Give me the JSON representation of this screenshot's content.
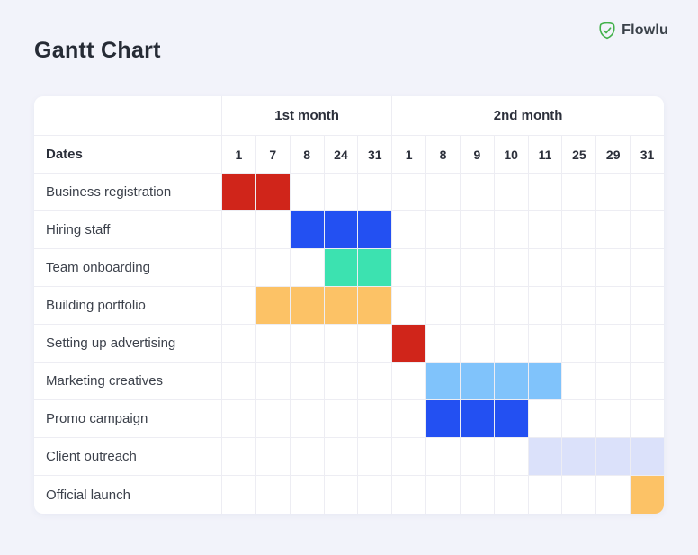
{
  "header": {
    "title": "Gantt Chart",
    "logo": {
      "icon": "flowlu-check-badge-icon",
      "text": "Flowlu",
      "green": "#43b14b"
    }
  },
  "table": {
    "months": [
      {
        "label": "1st month",
        "span": 5
      },
      {
        "label": "2nd month",
        "span": 8
      }
    ],
    "dates_label": "Dates",
    "dates": [
      "1",
      "7",
      "8",
      "24",
      "31",
      "1",
      "8",
      "9",
      "10",
      "11",
      "25",
      "29",
      "31"
    ],
    "rows": [
      {
        "label": "Business registration",
        "bars": [
          {
            "from": 1,
            "to": 2,
            "color": "red"
          }
        ]
      },
      {
        "label": "Hiring staff",
        "bars": [
          {
            "from": 3,
            "to": 5,
            "color": "blue"
          }
        ]
      },
      {
        "label": "Team onboarding",
        "bars": [
          {
            "from": 4,
            "to": 5,
            "color": "teal"
          }
        ]
      },
      {
        "label": "Building portfolio",
        "bars": [
          {
            "from": 2,
            "to": 5,
            "color": "orange"
          }
        ]
      },
      {
        "label": "Setting up advertising",
        "bars": [
          {
            "from": 6,
            "to": 6,
            "color": "red"
          }
        ]
      },
      {
        "label": "Marketing creatives",
        "bars": [
          {
            "from": 7,
            "to": 10,
            "color": "sky"
          }
        ]
      },
      {
        "label": "Promo campaign",
        "bars": [
          {
            "from": 7,
            "to": 9,
            "color": "blue"
          }
        ]
      },
      {
        "label": "Client outreach",
        "bars": [
          {
            "from": 10,
            "to": 13,
            "color": "lavender"
          }
        ]
      },
      {
        "label": "Official launch",
        "bars": [
          {
            "from": 13,
            "to": 13,
            "color": "orange"
          }
        ]
      }
    ]
  },
  "colors": {
    "red": "#d0251a",
    "blue": "#2350f2",
    "teal": "#3ce2b0",
    "orange": "#fcc266",
    "sky": "#80c3fb",
    "lavender": "#dbe1fa",
    "page_background": "#f2f3fa",
    "border": "#ededf3"
  },
  "chart_data": {
    "type": "table",
    "subtype": "gantt",
    "title": "Gantt Chart",
    "column_groups": [
      {
        "label": "1st month",
        "columns": [
          "1",
          "7",
          "8",
          "24",
          "31"
        ]
      },
      {
        "label": "2nd month",
        "columns": [
          "1",
          "8",
          "9",
          "10",
          "11",
          "25",
          "29",
          "31"
        ]
      }
    ],
    "tasks": [
      {
        "name": "Business registration",
        "month": "1st month",
        "start": "1",
        "end": "7",
        "color": "#d0251a"
      },
      {
        "name": "Hiring staff",
        "month": "1st month",
        "start": "8",
        "end": "31",
        "color": "#2350f2"
      },
      {
        "name": "Team onboarding",
        "month": "1st month",
        "start": "24",
        "end": "31",
        "color": "#3ce2b0"
      },
      {
        "name": "Building portfolio",
        "month": "1st month",
        "start": "7",
        "end": "31",
        "color": "#fcc266"
      },
      {
        "name": "Setting up advertising",
        "month": "2nd month",
        "start": "1",
        "end": "1",
        "color": "#d0251a"
      },
      {
        "name": "Marketing creatives",
        "month": "2nd month",
        "start": "8",
        "end": "11",
        "color": "#80c3fb"
      },
      {
        "name": "Promo campaign",
        "month": "2nd month",
        "start": "8",
        "end": "10",
        "color": "#2350f2"
      },
      {
        "name": "Client outreach",
        "month": "2nd month",
        "start": "11",
        "end": "31",
        "color": "#dbe1fa"
      },
      {
        "name": "Official launch",
        "month": "2nd month",
        "start": "31",
        "end": "31",
        "color": "#fcc266"
      }
    ]
  }
}
